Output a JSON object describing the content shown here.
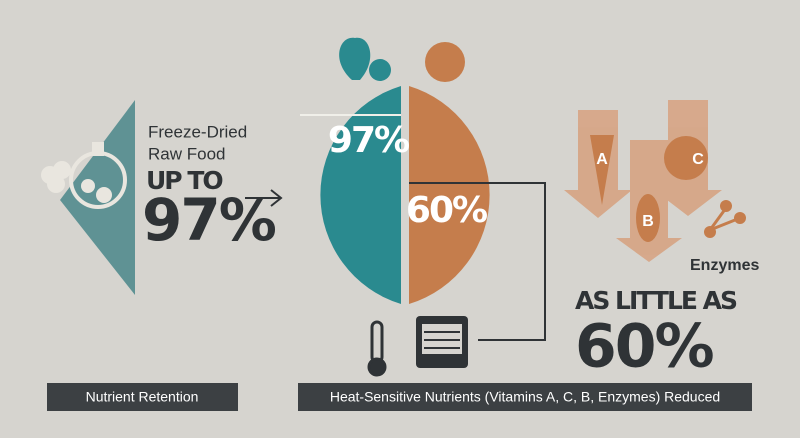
{
  "left": {
    "heading_lines": [
      "Freeze-Dried",
      "Raw Food"
    ],
    "prefix": "UP TO",
    "value": "97%"
  },
  "circle": {
    "left_value": "97%",
    "right_value": "60%"
  },
  "right": {
    "prefix": "AS LITTLE AS",
    "value": "60%",
    "enzymes_label": "Enzymes",
    "vitamin_letters": [
      "A",
      "C",
      "B"
    ]
  },
  "footer": {
    "left_label": "Nutrient Retention",
    "right_label": "Heat-Sensitive Nutrients (Vitamins A, C, B, Enzymes) Reduced"
  }
}
